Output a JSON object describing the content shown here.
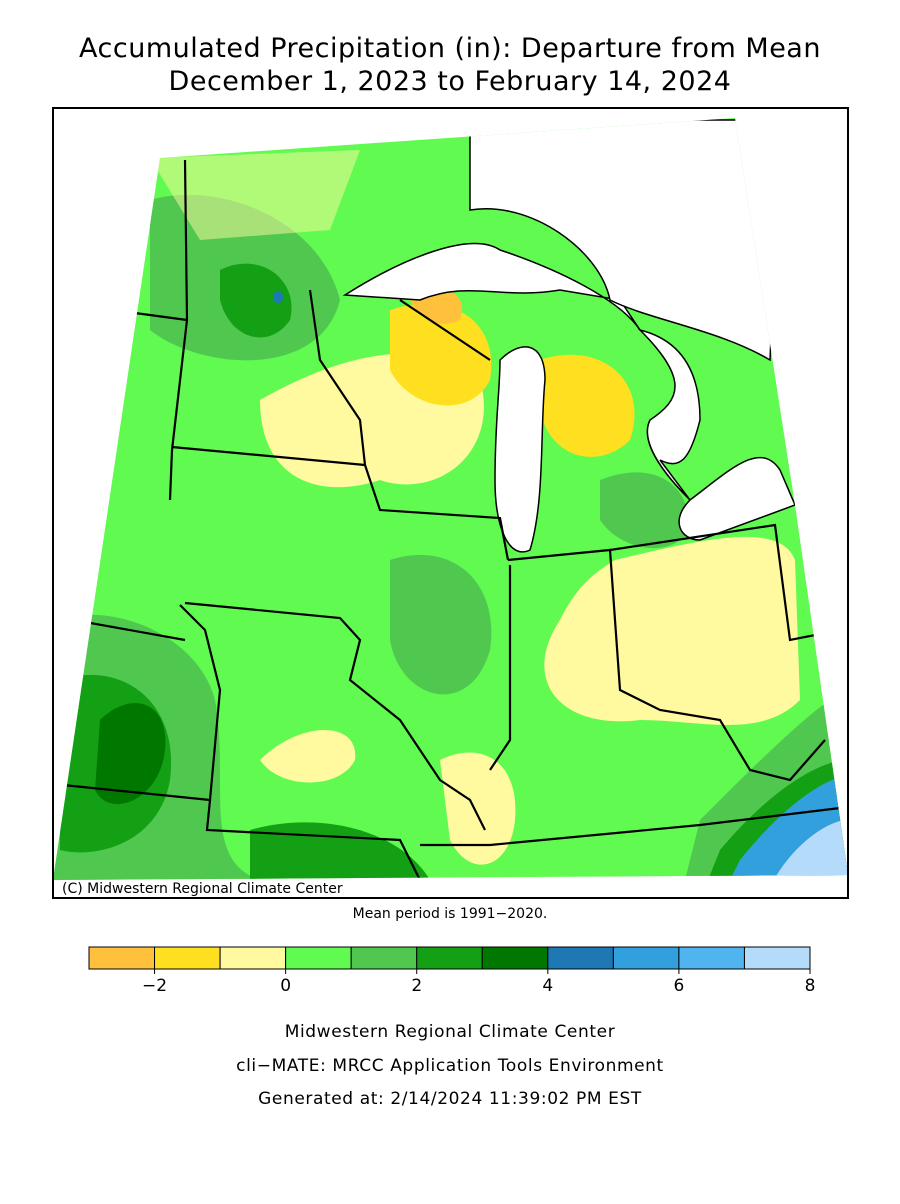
{
  "title": [
    "Accumulated Precipitation (in): Departure from Mean",
    "December 1, 2023 to February 14, 2024"
  ],
  "copyright": "(C) Midwestern Regional Climate Center",
  "note": "Mean period is 1991−2020.",
  "legend": {
    "bounds": [
      -3,
      -2,
      -1,
      0,
      1,
      2,
      3,
      4,
      5,
      6,
      7,
      8
    ],
    "colors": [
      "#ffc03c",
      "#ffe020",
      "#fffaa0",
      "#60fa50",
      "#50c850",
      "#14a014",
      "#007800",
      "#1e78b4",
      "#32a0dc",
      "#50b4f0",
      "#b4dcfa"
    ],
    "ticks": [
      {
        "value": -2,
        "label": "−2"
      },
      0,
      2,
      4,
      6,
      8
    ]
  },
  "footer": [
    "Midwestern Regional Climate Center",
    "cli−MATE: MRCC Application Tools Environment",
    "Generated at: 2/14/2024 11:39:02 PM EST"
  ]
}
